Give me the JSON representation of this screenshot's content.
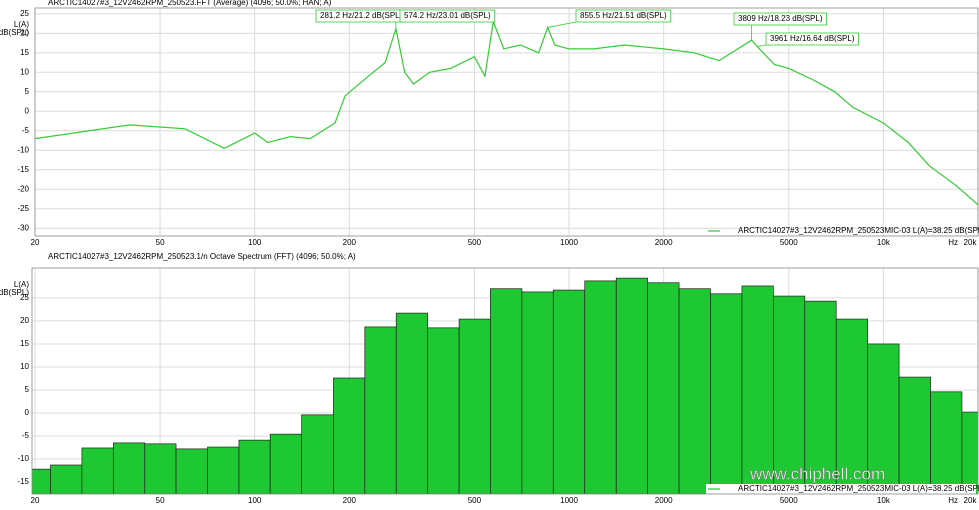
{
  "chart_data": [
    {
      "type": "line",
      "title": "ARCTIC14027#3_12V2462RPM_250523.FFT (Average) (4096; 50.0%; HAN; A)",
      "ylabel": [
        "L(A)",
        "dB(SPL)"
      ],
      "xlabel": "Hz",
      "xscale": "log",
      "grid": true,
      "x": [
        20,
        40,
        60,
        80,
        100,
        110,
        130,
        150,
        180,
        194,
        230,
        260,
        281.2,
        300,
        320,
        360,
        420,
        500,
        540,
        574.2,
        620,
        700,
        800,
        855.5,
        900,
        1000,
        1200,
        1500,
        2000,
        2500,
        3000,
        3809,
        3961,
        4500,
        5000,
        6000,
        7000,
        8000,
        10000,
        12000,
        14000,
        17000,
        20000
      ],
      "series": [
        {
          "name": "ARCTIC14027#3_12V2462RPM_250523MIC-03 L(A)=38.25 dB(SPL)",
          "color": "#33cc33",
          "values": [
            -7,
            -3.5,
            -4.5,
            -9.5,
            -5.6,
            -8,
            -6.5,
            -7,
            -3,
            4,
            9,
            12.5,
            21.2,
            10,
            7,
            10,
            11,
            14,
            9,
            23.01,
            16,
            17,
            15,
            21.51,
            17,
            16,
            16,
            17,
            16,
            15,
            13,
            18.23,
            16.64,
            12,
            11,
            8,
            5,
            1,
            -3,
            -8,
            -14,
            -19,
            -24
          ]
        }
      ],
      "annotations": [
        {
          "text": "281.2 Hz/21.2 dB(SPL)",
          "x": 281.2,
          "y": 21.2
        },
        {
          "text": "574.2 Hz/23.01 dB(SPL)",
          "x": 574.2,
          "y": 23.01
        },
        {
          "text": "855.5 Hz/21.51 dB(SPL)",
          "x": 855.5,
          "y": 21.51
        },
        {
          "text": "3809 Hz/18.23 dB(SPL)",
          "x": 3809,
          "y": 18.23
        },
        {
          "text": "3961 Hz/16.64 dB(SPL)",
          "x": 3961,
          "y": 16.64
        }
      ],
      "xlim": [
        20,
        20000
      ],
      "xticks": [
        20,
        50,
        100,
        200,
        500,
        1000,
        2000,
        5000,
        {
          "value": 10000,
          "label": "10k"
        },
        {
          "value": 20000,
          "label": "20k"
        }
      ],
      "ylim": [
        -32,
        26.5
      ],
      "yticks": [
        25,
        20,
        15,
        10,
        5,
        0,
        -5,
        -10,
        -15,
        -20,
        -25,
        -30
      ]
    },
    {
      "type": "histogram",
      "title": "ARCTIC14027#3_12V2462RPM_250523.1/n Octave Spectrum (FFT) (4096; 50.0%; A)",
      "ylabel": [
        "L(A)",
        "dB(SPL)"
      ],
      "xlabel": "Hz",
      "xscale": "log",
      "grid": true,
      "bins": [
        17.8,
        22.4,
        28.2,
        35.5,
        44.7,
        56.2,
        70.8,
        89.1,
        112,
        141,
        178,
        224,
        282,
        355,
        447,
        562,
        708,
        891,
        1122,
        1413,
        1778,
        2239,
        2818,
        3548,
        4467,
        5623,
        7079,
        8913,
        11220,
        14130,
        17780,
        22390
      ],
      "series": [
        {
          "name": "ARCTIC14027#3_12V2462RPM_250523MIC-03 L(A)=38.25 dB(SPL)",
          "color": "#1ec832",
          "values": [
            -12.2,
            -11.3,
            -7.6,
            -6.5,
            -6.7,
            -7.8,
            -7.4,
            -5.9,
            -4.6,
            -0.4,
            7.6,
            18.7,
            21.7,
            18.5,
            20.4,
            27,
            26.3,
            26.7,
            28.7,
            29.3,
            28.3,
            27,
            25.9,
            27.6,
            25.4,
            24.3,
            20.4,
            15,
            7.8,
            4.6,
            0.2
          ]
        }
      ],
      "xlim": [
        20,
        20000
      ],
      "xticks": [
        20,
        50,
        100,
        200,
        500,
        1000,
        2000,
        5000,
        {
          "value": 10000,
          "label": "10k"
        },
        {
          "value": 20000,
          "label": "20k"
        }
      ],
      "ylim": [
        -17.6,
        31.5
      ],
      "yticks": [
        25,
        20,
        15,
        10,
        5,
        0,
        -5,
        -10,
        -15
      ],
      "watermark": "www.chiphell.com"
    }
  ]
}
